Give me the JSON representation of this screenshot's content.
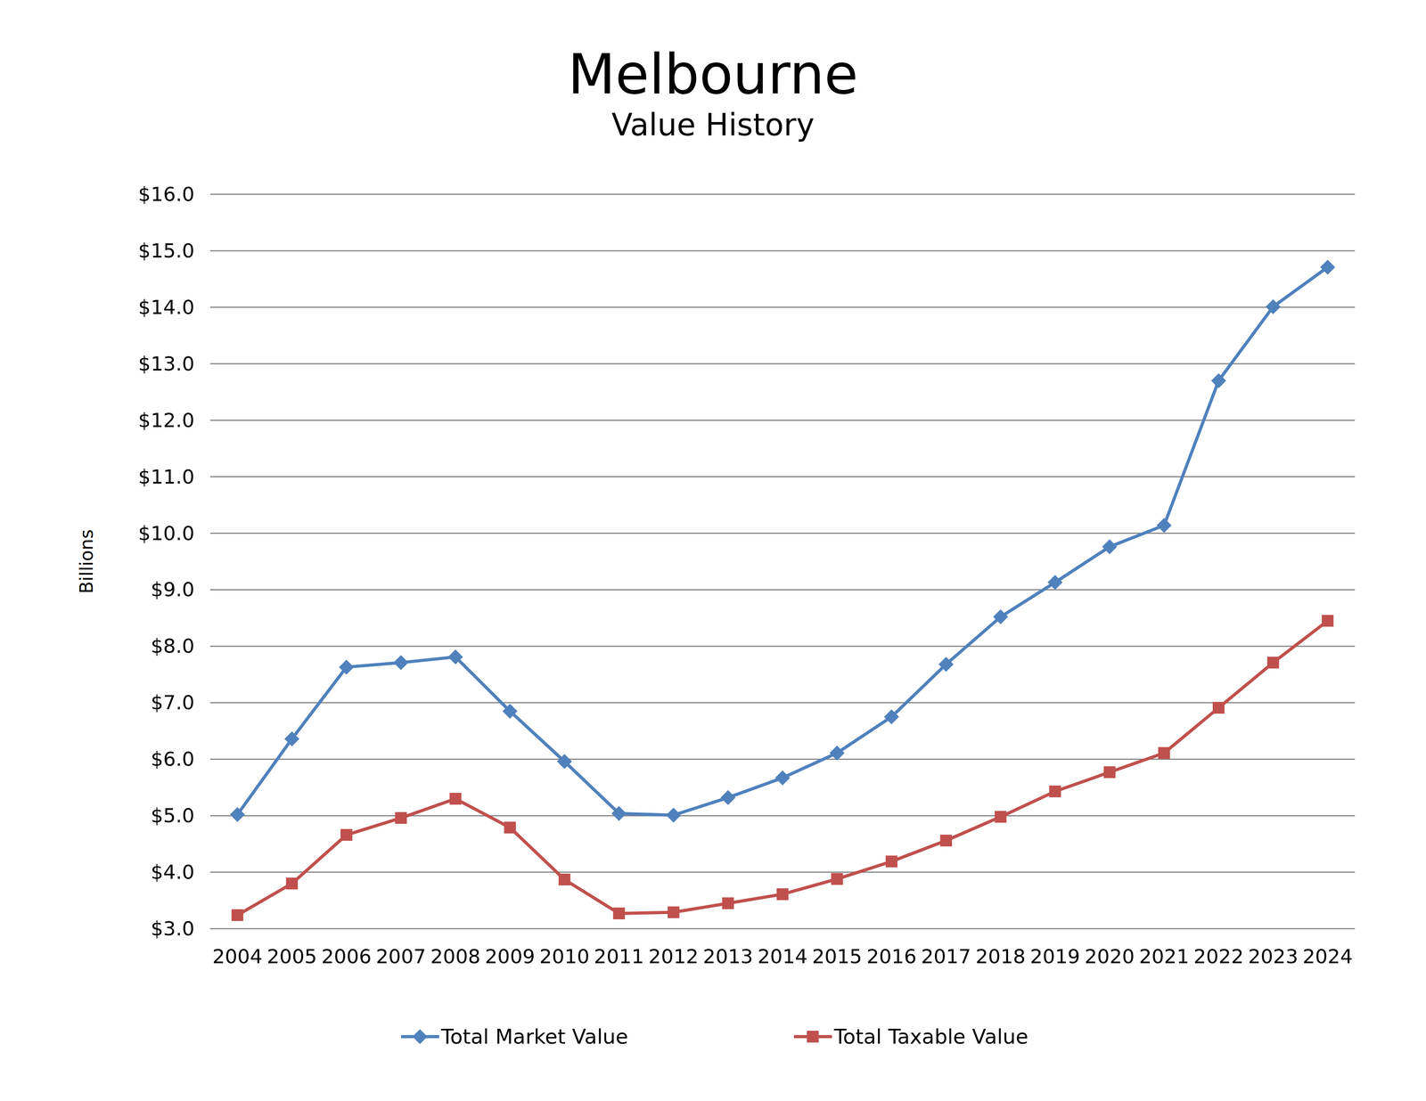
{
  "chart_data": {
    "type": "line",
    "title": "Melbourne",
    "subtitle": "Value History",
    "y_label": "Billions",
    "categories": [
      "2004",
      "2005",
      "2006",
      "2007",
      "2008",
      "2009",
      "2010",
      "2011",
      "2012",
      "2013",
      "2014",
      "2015",
      "2016",
      "2017",
      "2018",
      "2019",
      "2020",
      "2021",
      "2022",
      "2023",
      "2024"
    ],
    "series": [
      {
        "name": "Total Market Value",
        "color": "#4f81bd",
        "marker": "diamond",
        "line_style": "solid",
        "values": [
          5.02,
          6.36,
          7.63,
          7.71,
          7.81,
          6.85,
          5.96,
          5.04,
          5.01,
          5.32,
          5.67,
          6.11,
          6.75,
          7.68,
          8.52,
          9.13,
          9.76,
          10.14,
          12.7,
          14.01,
          14.71
        ]
      },
      {
        "name": "Total Taxable Value",
        "color": "#c0504d",
        "marker": "square",
        "line_style": "solid",
        "values": [
          3.24,
          3.8,
          4.66,
          4.96,
          5.3,
          4.79,
          3.87,
          3.27,
          3.29,
          3.45,
          3.61,
          3.88,
          4.19,
          4.56,
          4.98,
          5.43,
          5.77,
          6.11,
          6.91,
          7.71,
          8.45
        ]
      }
    ],
    "ylim": [
      3,
      16
    ],
    "yticks": [
      {
        "value": 3,
        "label": "$3.0"
      },
      {
        "value": 4,
        "label": "$4.0"
      },
      {
        "value": 5,
        "label": "$5.0"
      },
      {
        "value": 6,
        "label": "$6.0"
      },
      {
        "value": 7,
        "label": "$7.0"
      },
      {
        "value": 8,
        "label": "$8.0"
      },
      {
        "value": 9,
        "label": "$9.0"
      },
      {
        "value": 10,
        "label": "$10.0"
      },
      {
        "value": 11,
        "label": "$11.0"
      },
      {
        "value": 12,
        "label": "$12.0"
      },
      {
        "value": 13,
        "label": "$13.0"
      },
      {
        "value": 14,
        "label": "$14.0"
      },
      {
        "value": 15,
        "label": "$15.0"
      },
      {
        "value": 16,
        "label": "$16.0"
      }
    ],
    "grid": true,
    "legend": "bottom"
  }
}
